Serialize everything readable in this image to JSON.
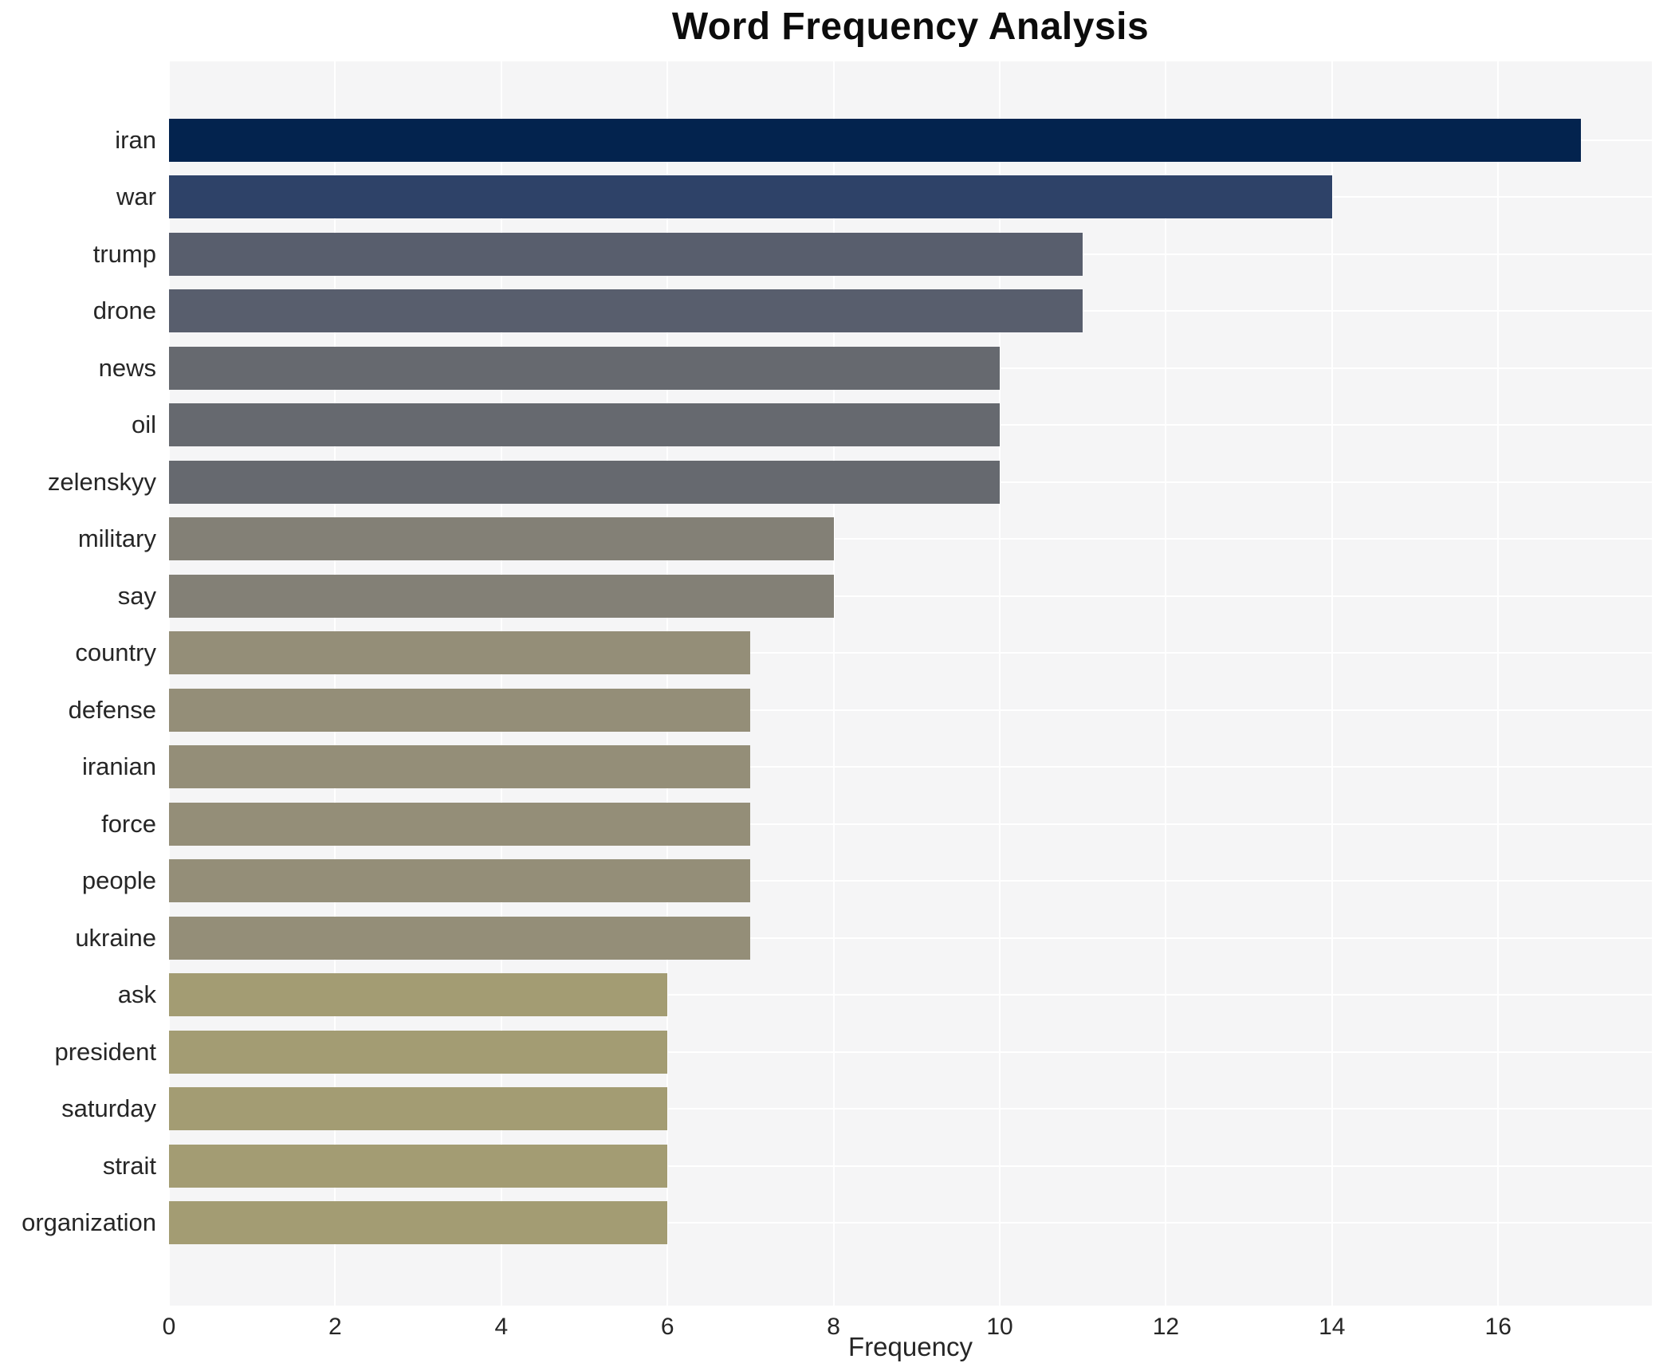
{
  "chart": {
    "title": "Word Frequency Analysis",
    "xlabel": "Frequency"
  },
  "chart_data": {
    "type": "bar",
    "orientation": "horizontal",
    "title": "Word Frequency Analysis",
    "xlabel": "Frequency",
    "ylabel": "",
    "categories": [
      "iran",
      "war",
      "trump",
      "drone",
      "news",
      "oil",
      "zelenskyy",
      "military",
      "say",
      "country",
      "defense",
      "iranian",
      "force",
      "people",
      "ukraine",
      "ask",
      "president",
      "saturday",
      "strait",
      "organization"
    ],
    "values": [
      17,
      14,
      11,
      11,
      10,
      10,
      10,
      8,
      8,
      7,
      7,
      7,
      7,
      7,
      7,
      6,
      6,
      6,
      6,
      6
    ],
    "bar_colors": [
      "#03234e",
      "#2e4268",
      "#585e6d",
      "#585e6d",
      "#66696f",
      "#66696f",
      "#66696f",
      "#838076",
      "#838076",
      "#948e78",
      "#948e78",
      "#948e78",
      "#948e78",
      "#948e78",
      "#948e78",
      "#a39c73",
      "#a39c73",
      "#a39c73",
      "#a39c73",
      "#a39c73"
    ],
    "xlim": [
      0,
      17.85
    ],
    "x_ticks": [
      0,
      2,
      4,
      6,
      8,
      10,
      12,
      14,
      16
    ],
    "grid": true,
    "legend": false,
    "plot_bg_color": "#f5f5f6",
    "grid_color": "#ffffff"
  }
}
